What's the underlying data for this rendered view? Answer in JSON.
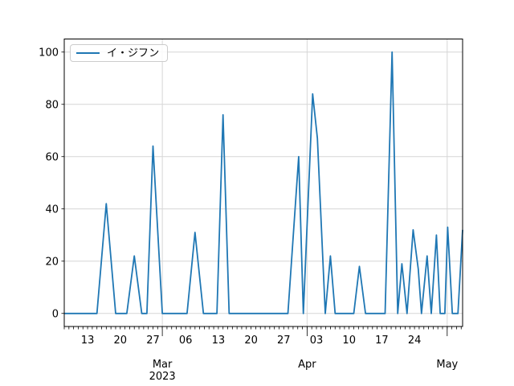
{
  "figure": {
    "background": "#ffffff"
  },
  "chart_data": {
    "type": "line",
    "title": "",
    "legend": {
      "position": "upper left",
      "entries": [
        {
          "label": "イ・ジフン",
          "color": "#1f77b4"
        }
      ]
    },
    "grid": {
      "show": true,
      "color": "#d6d6d6",
      "vertical_on": "month-starts",
      "horizontal_on": "y-ticks"
    },
    "x_axis": {
      "start_date": "2023-02-08",
      "end_date": "2023-05-04",
      "total_days": 85.3,
      "minor_tick_every_days": 1,
      "day_tick_labels": [
        {
          "day": 5,
          "label": "13"
        },
        {
          "day": 12,
          "label": "20"
        },
        {
          "day": 19,
          "label": "27"
        },
        {
          "day": 26,
          "label": "06"
        },
        {
          "day": 33,
          "label": "13"
        },
        {
          "day": 40,
          "label": "20"
        },
        {
          "day": 47,
          "label": "27"
        },
        {
          "day": 54,
          "label": "03"
        },
        {
          "day": 61,
          "label": "10"
        },
        {
          "day": 68,
          "label": "17"
        },
        {
          "day": 75,
          "label": "24"
        }
      ],
      "month_ticks": [
        {
          "day": 21,
          "label": "Mar",
          "sublabel": "2023"
        },
        {
          "day": 52,
          "label": "Apr",
          "sublabel": ""
        },
        {
          "day": 82,
          "label": "May",
          "sublabel": ""
        }
      ]
    },
    "y_axis": {
      "ticks": [
        0,
        20,
        40,
        60,
        80,
        100
      ],
      "lim": [
        -5,
        105
      ],
      "label": ""
    },
    "series": [
      {
        "name": "イ・ジフン",
        "color": "#1f77b4",
        "points_day_value": [
          [
            0,
            0
          ],
          [
            7,
            0
          ],
          [
            9,
            42
          ],
          [
            11,
            0
          ],
          [
            13.4,
            0
          ],
          [
            15,
            22
          ],
          [
            16.6,
            0
          ],
          [
            17.7,
            0
          ],
          [
            19,
            64
          ],
          [
            21,
            0
          ],
          [
            26.3,
            0
          ],
          [
            28,
            31
          ],
          [
            29.8,
            0
          ],
          [
            32.7,
            0
          ],
          [
            34,
            76
          ],
          [
            35.3,
            0
          ],
          [
            47.9,
            0
          ],
          [
            50.2,
            60
          ],
          [
            51.2,
            0
          ],
          [
            53.2,
            84
          ],
          [
            54.2,
            67
          ],
          [
            55.9,
            0
          ],
          [
            57,
            22
          ],
          [
            58,
            0
          ],
          [
            62,
            0
          ],
          [
            63.2,
            18
          ],
          [
            64.5,
            0
          ],
          [
            68.7,
            0
          ],
          [
            70.2,
            100
          ],
          [
            71.4,
            0
          ],
          [
            72.3,
            19
          ],
          [
            73.4,
            0
          ],
          [
            74.7,
            32
          ],
          [
            75.8,
            17
          ],
          [
            76.5,
            0
          ],
          [
            77.7,
            22
          ],
          [
            78.6,
            0
          ],
          [
            79.7,
            30
          ],
          [
            80.5,
            0
          ],
          [
            81.5,
            0
          ],
          [
            82.1,
            33
          ],
          [
            83.1,
            0
          ],
          [
            84.3,
            0
          ],
          [
            85.3,
            32
          ]
        ]
      }
    ],
    "peak_values_in_order": [
      42,
      22,
      64,
      31,
      76,
      60,
      84,
      22,
      18,
      100,
      19,
      32,
      22,
      30,
      33,
      32
    ]
  },
  "colors": {
    "line": "#1f77b4",
    "grid": "#d6d6d6",
    "spine": "#000000",
    "tick_label": "#000000",
    "legend_border": "#cccccc"
  }
}
